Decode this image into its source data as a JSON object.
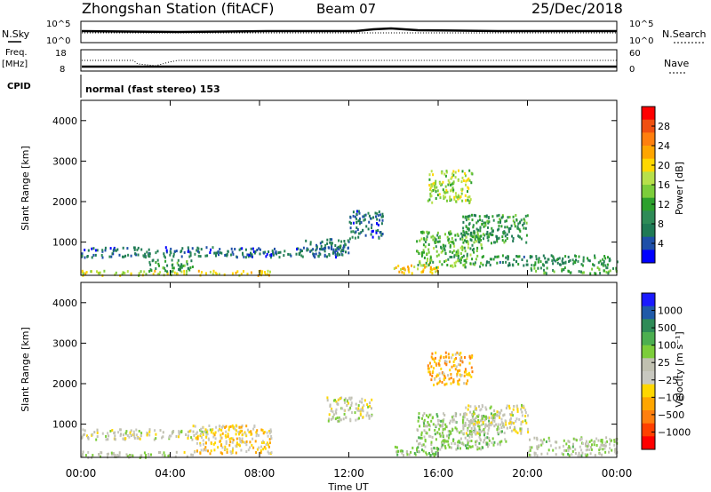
{
  "header": {
    "station": "Zhongshan Station (fitACF)",
    "beam": "Beam 07",
    "date": "25/Dec/2018"
  },
  "nsky_panel": {
    "left_label": "N.Sky",
    "right_label": "N.Search",
    "ticks": [
      "10^5",
      "10^0"
    ]
  },
  "freq_panel": {
    "left_label_1": "Freq.",
    "left_label_2": "[MHz]",
    "left_ticks": [
      "18",
      "8"
    ],
    "right_label": "Nave",
    "right_ticks": [
      "60",
      "0"
    ]
  },
  "cpid": {
    "label": "CPID",
    "mode": "normal (fast stereo) 153"
  },
  "power_panel": {
    "ylabel": "Slant Range [km]",
    "yticks": [
      "4000",
      "3000",
      "2000",
      "1000"
    ],
    "colorbar_label": "Power [dB]",
    "colorbar_ticks": [
      "28",
      "24",
      "20",
      "16",
      "12",
      "8",
      "4"
    ],
    "colorbar_colors": [
      "#0000ff",
      "#1e4fa8",
      "#1f7a55",
      "#2e8b57",
      "#2ca02c",
      "#7ccd3a",
      "#b7e04a",
      "#ffd700",
      "#ffa500",
      "#ff7f0e",
      "#f05010",
      "#ff0000"
    ]
  },
  "velocity_panel": {
    "ylabel": "Slant Range [km]",
    "yticks": [
      "4000",
      "3000",
      "2000",
      "1000"
    ],
    "colorbar_label": "Velocity [m s⁻¹]",
    "colorbar_ticks": [
      "1000",
      "500",
      "100",
      "25",
      "−25",
      "−100",
      "−500",
      "−1000"
    ],
    "colorbar_colors": [
      "#1a1aff",
      "#1f5aa8",
      "#2e8b57",
      "#4caf50",
      "#7ccd3a",
      "#c0c0b0",
      "#c8c8c0",
      "#ffd700",
      "#ffa500",
      "#ff7f0e",
      "#ff4000",
      "#ff0000"
    ]
  },
  "xaxis": {
    "ticks": [
      "00:00",
      "04:00",
      "08:00",
      "12:00",
      "16:00",
      "20:00",
      "00:00"
    ],
    "label": "Time UT"
  },
  "chart_data": {
    "type": "heatmap",
    "x_range_hours": [
      0,
      24
    ],
    "y_range_km": [
      180,
      4500
    ],
    "power_scale_db": [
      0,
      32
    ],
    "velocity_scale_ms": [
      -1200,
      1200
    ],
    "power_blobs": [
      {
        "t": [
          0,
          12
        ],
        "r": [
          650,
          900
        ],
        "v": 6
      },
      {
        "t": [
          0,
          5
        ],
        "r": [
          200,
          320
        ],
        "v": 18
      },
      {
        "t": [
          5.2,
          8.5
        ],
        "r": [
          200,
          320
        ],
        "v": 20
      },
      {
        "t": [
          3,
          5
        ],
        "r": [
          300,
          600
        ],
        "v": 10
      },
      {
        "t": [
          10,
          12
        ],
        "r": [
          800,
          1100
        ],
        "v": 7
      },
      {
        "t": [
          12,
          13.5
        ],
        "r": [
          1100,
          1800
        ],
        "v": 6
      },
      {
        "t": [
          14,
          16
        ],
        "r": [
          250,
          500
        ],
        "v": 20
      },
      {
        "t": [
          15,
          18
        ],
        "r": [
          400,
          1300
        ],
        "v": 13
      },
      {
        "t": [
          15.5,
          17.5
        ],
        "r": [
          2000,
          2800
        ],
        "v": 16
      },
      {
        "t": [
          17,
          20
        ],
        "r": [
          1000,
          1700
        ],
        "v": 10
      },
      {
        "t": [
          20,
          24
        ],
        "r": [
          250,
          400
        ],
        "v": 12
      },
      {
        "t": [
          18,
          24
        ],
        "r": [
          450,
          700
        ],
        "v": 9
      }
    ],
    "velocity_blobs": [
      {
        "t": [
          0,
          6
        ],
        "r": [
          650,
          900
        ],
        "v": 0
      },
      {
        "t": [
          5,
          8.5
        ],
        "r": [
          300,
          1000
        ],
        "v": -300
      },
      {
        "t": [
          0,
          5
        ],
        "r": [
          200,
          350
        ],
        "v": 80
      },
      {
        "t": [
          11,
          13
        ],
        "r": [
          1100,
          1700
        ],
        "v": 0
      },
      {
        "t": [
          14,
          16
        ],
        "r": [
          250,
          500
        ],
        "v": 300
      },
      {
        "t": [
          15.5,
          17.5
        ],
        "r": [
          2000,
          2800
        ],
        "v": -400
      },
      {
        "t": [
          15,
          19
        ],
        "r": [
          400,
          1300
        ],
        "v": 200
      },
      {
        "t": [
          17,
          20
        ],
        "r": [
          800,
          1500
        ],
        "v": 0
      },
      {
        "t": [
          20,
          24
        ],
        "r": [
          250,
          700
        ],
        "v": 120
      }
    ]
  }
}
